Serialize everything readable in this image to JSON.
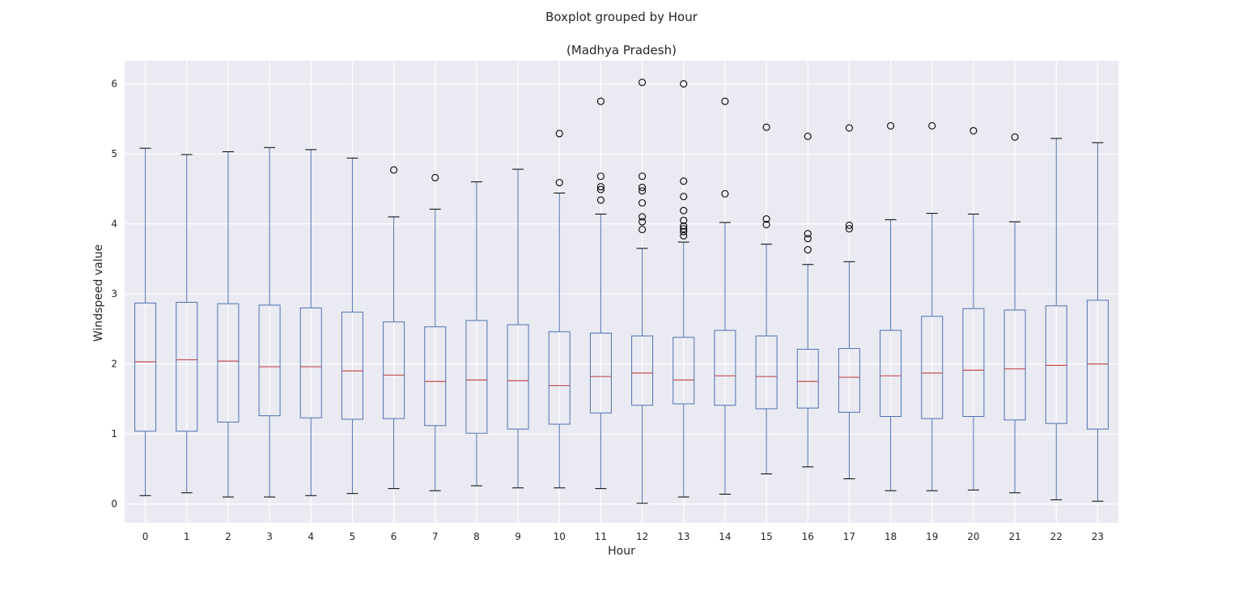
{
  "chart_data": {
    "type": "boxplot",
    "suptitle": "Boxplot grouped by Hour",
    "title": "(Madhya Pradesh)",
    "xlabel": "Hour",
    "ylabel": "Windspeed value",
    "ylim": [
      -0.27,
      6.33
    ],
    "yticks": [
      0,
      1,
      2,
      3,
      4,
      5,
      6
    ],
    "grid": true,
    "colors": {
      "background": "#eaeaf2",
      "grid": "#ffffff",
      "box": "#4c72b0",
      "median": "#c44e52",
      "whisker_cap": "#000000",
      "flier": "#000000"
    },
    "categories": [
      "0",
      "1",
      "2",
      "3",
      "4",
      "5",
      "6",
      "7",
      "8",
      "9",
      "10",
      "11",
      "12",
      "13",
      "14",
      "15",
      "16",
      "17",
      "18",
      "19",
      "20",
      "21",
      "22",
      "23"
    ],
    "boxes": [
      {
        "low": 0.12,
        "q1": 1.04,
        "median": 2.03,
        "q3": 2.87,
        "high": 5.08,
        "fliers": []
      },
      {
        "low": 0.16,
        "q1": 1.04,
        "median": 2.06,
        "q3": 2.88,
        "high": 4.99,
        "fliers": []
      },
      {
        "low": 0.1,
        "q1": 1.17,
        "median": 2.04,
        "q3": 2.86,
        "high": 5.03,
        "fliers": []
      },
      {
        "low": 0.1,
        "q1": 1.26,
        "median": 1.96,
        "q3": 2.84,
        "high": 5.09,
        "fliers": []
      },
      {
        "low": 0.12,
        "q1": 1.23,
        "median": 1.96,
        "q3": 2.8,
        "high": 5.06,
        "fliers": []
      },
      {
        "low": 0.15,
        "q1": 1.21,
        "median": 1.9,
        "q3": 2.74,
        "high": 4.94,
        "fliers": []
      },
      {
        "low": 0.22,
        "q1": 1.22,
        "median": 1.84,
        "q3": 2.6,
        "high": 4.1,
        "fliers": [
          4.77
        ]
      },
      {
        "low": 0.19,
        "q1": 1.12,
        "median": 1.75,
        "q3": 2.53,
        "high": 4.21,
        "fliers": [
          4.66
        ]
      },
      {
        "low": 0.26,
        "q1": 1.01,
        "median": 1.77,
        "q3": 2.62,
        "high": 4.6,
        "fliers": []
      },
      {
        "low": 0.23,
        "q1": 1.07,
        "median": 1.76,
        "q3": 2.56,
        "high": 4.78,
        "fliers": []
      },
      {
        "low": 0.23,
        "q1": 1.14,
        "median": 1.69,
        "q3": 2.46,
        "high": 4.44,
        "fliers": [
          4.59,
          5.29
        ]
      },
      {
        "low": 0.22,
        "q1": 1.3,
        "median": 1.82,
        "q3": 2.44,
        "high": 4.14,
        "fliers": [
          4.34,
          4.49,
          4.53,
          4.68,
          5.75
        ]
      },
      {
        "low": 0.01,
        "q1": 1.41,
        "median": 1.87,
        "q3": 2.4,
        "high": 3.65,
        "fliers": [
          3.92,
          4.03,
          4.1,
          4.3,
          4.47,
          4.52,
          4.68,
          6.02
        ]
      },
      {
        "low": 0.1,
        "q1": 1.43,
        "median": 1.77,
        "q3": 2.38,
        "high": 3.74,
        "fliers": [
          3.83,
          3.89,
          3.93,
          3.97,
          4.05,
          4.19,
          4.39,
          4.61,
          6.0
        ]
      },
      {
        "low": 0.14,
        "q1": 1.41,
        "median": 1.83,
        "q3": 2.48,
        "high": 4.02,
        "fliers": [
          4.43,
          5.75
        ]
      },
      {
        "low": 0.43,
        "q1": 1.36,
        "median": 1.82,
        "q3": 2.4,
        "high": 3.71,
        "fliers": [
          3.99,
          4.07,
          5.38
        ]
      },
      {
        "low": 0.53,
        "q1": 1.37,
        "median": 1.75,
        "q3": 2.21,
        "high": 3.42,
        "fliers": [
          3.63,
          3.79,
          3.86,
          5.25
        ]
      },
      {
        "low": 0.36,
        "q1": 1.31,
        "median": 1.81,
        "q3": 2.22,
        "high": 3.46,
        "fliers": [
          3.93,
          3.98,
          5.37
        ]
      },
      {
        "low": 0.19,
        "q1": 1.25,
        "median": 1.83,
        "q3": 2.48,
        "high": 4.06,
        "fliers": [
          5.4
        ]
      },
      {
        "low": 0.19,
        "q1": 1.22,
        "median": 1.87,
        "q3": 2.68,
        "high": 4.15,
        "fliers": [
          5.4
        ]
      },
      {
        "low": 0.2,
        "q1": 1.25,
        "median": 1.91,
        "q3": 2.79,
        "high": 4.14,
        "fliers": [
          5.33
        ]
      },
      {
        "low": 0.16,
        "q1": 1.2,
        "median": 1.93,
        "q3": 2.77,
        "high": 4.03,
        "fliers": [
          5.24
        ]
      },
      {
        "low": 0.06,
        "q1": 1.15,
        "median": 1.98,
        "q3": 2.83,
        "high": 5.22,
        "fliers": []
      },
      {
        "low": 0.04,
        "q1": 1.07,
        "median": 2.0,
        "q3": 2.91,
        "high": 5.16,
        "fliers": []
      }
    ]
  }
}
